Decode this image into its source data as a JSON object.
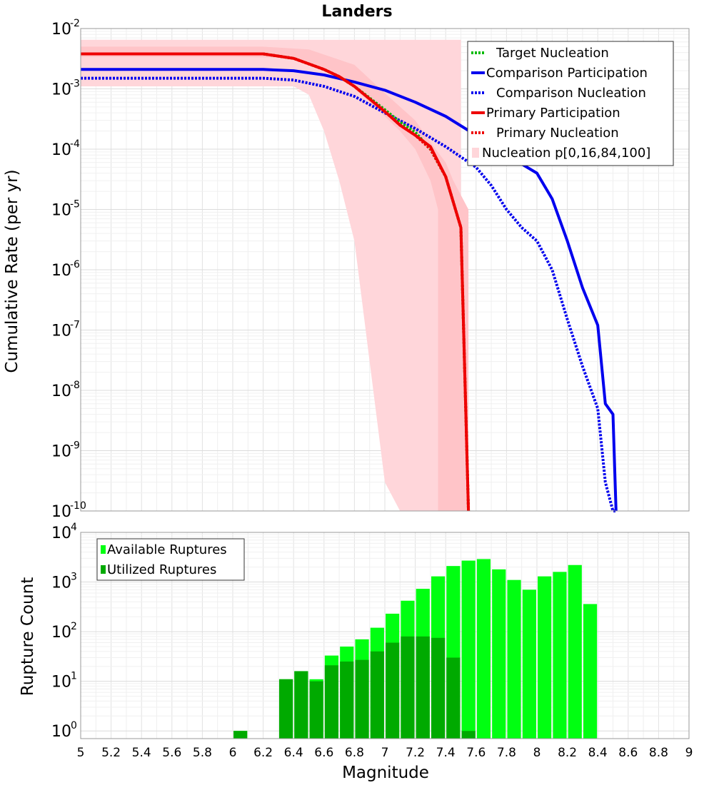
{
  "chart_data": [
    {
      "type": "line",
      "title": "Landers",
      "xlabel": "",
      "ylabel": "Cumulative Rate (per yr)",
      "xlim": [
        5,
        9
      ],
      "ylim": [
        1e-10,
        0.01
      ],
      "y_scale": "log",
      "y_ticks": [
        {
          "base": "10",
          "exp": "-10",
          "value": 1e-10
        },
        {
          "base": "10",
          "exp": "-9",
          "value": 1e-09
        },
        {
          "base": "10",
          "exp": "-8",
          "value": 1e-08
        },
        {
          "base": "10",
          "exp": "-7",
          "value": 1e-07
        },
        {
          "base": "10",
          "exp": "-6",
          "value": 1e-06
        },
        {
          "base": "10",
          "exp": "-5",
          "value": 1e-05
        },
        {
          "base": "10",
          "exp": "-4",
          "value": 0.0001
        },
        {
          "base": "10",
          "exp": "-3",
          "value": 0.001
        },
        {
          "base": "10",
          "exp": "-2",
          "value": 0.01
        }
      ],
      "grid": true,
      "legend_position": "top-right",
      "legend": [
        {
          "label": "Target Nucleation",
          "color": "#00bb00",
          "style": "dotted"
        },
        {
          "label": "Comparison Participation",
          "color": "#0000ee",
          "style": "solid"
        },
        {
          "label": "Comparison Nucleation",
          "color": "#0000ee",
          "style": "dotted"
        },
        {
          "label": "Primary Participation",
          "color": "#ee0000",
          "style": "solid"
        },
        {
          "label": "Primary Nucleation",
          "color": "#ee0000",
          "style": "dotted"
        },
        {
          "label": "Nucleation p[0,16,84,100]",
          "color": "#ffd6da",
          "style": "fill"
        }
      ],
      "bands": [
        {
          "name": "p0-p100",
          "color": "#ffd6da",
          "x": [
            5.0,
            6.2,
            6.5,
            6.8,
            7.0,
            7.1,
            7.15,
            7.5,
            7.5,
            7.4,
            7.3,
            7.2,
            7.1,
            7.0,
            6.9,
            6.8,
            6.7,
            6.6,
            6.5,
            6.4,
            6.3,
            6.0,
            5.0
          ],
          "y": [
            0.0065,
            0.0065,
            0.0065,
            0.0065,
            0.0065,
            0.0065,
            0.0065,
            0.0065,
            1e-10,
            1e-10,
            1e-10,
            1e-10,
            1e-10,
            3e-10,
            3e-08,
            3e-06,
            3e-05,
            0.0002,
            0.0008,
            0.0011,
            0.0011,
            0.0011,
            0.0011
          ]
        },
        {
          "name": "p16-p84",
          "color": "#ffc4c8",
          "x": [
            5.0,
            6.2,
            6.5,
            6.8,
            7.0,
            7.2,
            7.3,
            7.4,
            7.45,
            7.55,
            7.55,
            7.35,
            7.35,
            7.3,
            7.2,
            7.1,
            7.0,
            6.9,
            6.8,
            6.7,
            6.6,
            6.5,
            6.4,
            6.3,
            6.0,
            5.0
          ],
          "y": [
            0.005,
            0.005,
            0.0045,
            0.0025,
            0.00085,
            0.0003,
            0.00013,
            6e-05,
            3e-05,
            1e-05,
            1e-10,
            1e-10,
            1e-05,
            3e-05,
            0.0001,
            0.0002,
            0.00035,
            0.0006,
            0.001,
            0.0015,
            0.002,
            0.0025,
            0.003,
            0.0033,
            0.0034,
            0.0034
          ]
        }
      ],
      "series": [
        {
          "name": "Comparison Participation",
          "color": "#0000ee",
          "style": "solid",
          "x": [
            5.0,
            6.0,
            6.2,
            6.4,
            6.6,
            6.8,
            7.0,
            7.2,
            7.4,
            7.6,
            7.8,
            8.0,
            8.1,
            8.2,
            8.3,
            8.4,
            8.45,
            8.5,
            8.52
          ],
          "y": [
            0.0021,
            0.0021,
            0.0021,
            0.002,
            0.0017,
            0.0013,
            0.00095,
            0.0006,
            0.00035,
            0.00017,
            8e-05,
            4e-05,
            1.5e-05,
            3e-06,
            5e-07,
            1.2e-07,
            6e-09,
            4e-09,
            1e-10
          ]
        },
        {
          "name": "Comparison Nucleation",
          "color": "#0000ee",
          "style": "dotted",
          "x": [
            5.0,
            6.0,
            6.2,
            6.4,
            6.6,
            6.8,
            7.0,
            7.2,
            7.4,
            7.6,
            7.7,
            7.8,
            7.9,
            8.0,
            8.1,
            8.2,
            8.3,
            8.4,
            8.45,
            8.5,
            8.52
          ],
          "y": [
            0.0015,
            0.0015,
            0.0015,
            0.0014,
            0.0011,
            0.00075,
            0.0004,
            0.00022,
            0.00011,
            5e-05,
            2.5e-05,
            1e-05,
            5e-06,
            3e-06,
            1e-06,
            1.5e-07,
            2.5e-08,
            5e-09,
            3e-10,
            1e-10,
            1e-10
          ]
        },
        {
          "name": "Target Nucleation",
          "color": "#00bb00",
          "style": "dotted",
          "x": [
            5.0,
            6.2,
            6.4,
            6.6,
            6.7,
            6.8,
            7.0,
            7.1,
            7.2,
            7.3,
            7.4,
            7.5,
            7.55
          ],
          "y": [
            0.0038,
            0.0038,
            0.0032,
            0.0021,
            0.0016,
            0.0011,
            0.00045,
            0.00028,
            0.00019,
            0.0001,
            3.5e-05,
            5e-06,
            1e-10
          ]
        },
        {
          "name": "Primary Participation",
          "color": "#ee0000",
          "style": "solid",
          "x": [
            5.0,
            6.2,
            6.4,
            6.6,
            6.7,
            6.8,
            7.0,
            7.1,
            7.2,
            7.3,
            7.4,
            7.5,
            7.55
          ],
          "y": [
            0.0038,
            0.0038,
            0.0032,
            0.0021,
            0.0016,
            0.0011,
            0.00042,
            0.00025,
            0.00017,
            0.00011,
            3.5e-05,
            5e-06,
            1e-10
          ]
        },
        {
          "name": "Primary Nucleation",
          "color": "#ee0000",
          "style": "dotted",
          "x": [
            5.0,
            6.2,
            6.4,
            6.6,
            6.7,
            6.8,
            7.0,
            7.1,
            7.2,
            7.3,
            7.4,
            7.5,
            7.55
          ],
          "y": [
            0.0038,
            0.0038,
            0.0032,
            0.0021,
            0.0016,
            0.0011,
            0.00042,
            0.00025,
            0.00017,
            0.0001,
            3.5e-05,
            5e-06,
            1e-10
          ]
        }
      ]
    },
    {
      "type": "bar",
      "xlabel": "Magnitude",
      "ylabel": "Rupture Count",
      "xlim": [
        5,
        9
      ],
      "ylim": [
        0.7,
        10000
      ],
      "y_scale": "log",
      "grid": true,
      "x_ticks": [
        "5",
        "5.2",
        "5.4",
        "5.6",
        "5.8",
        "6",
        "6.2",
        "6.4",
        "6.6",
        "6.8",
        "7",
        "7.2",
        "7.4",
        "7.6",
        "7.8",
        "8",
        "8.2",
        "8.4",
        "8.6",
        "8.8",
        "9"
      ],
      "y_ticks": [
        {
          "base": "10",
          "exp": "0",
          "value": 1
        },
        {
          "base": "10",
          "exp": "1",
          "value": 10
        },
        {
          "base": "10",
          "exp": "2",
          "value": 100
        },
        {
          "base": "10",
          "exp": "3",
          "value": 1000
        },
        {
          "base": "10",
          "exp": "4",
          "value": 10000
        }
      ],
      "legend_position": "top-left",
      "legend": [
        {
          "label": "Available Ruptures",
          "color": "#00ff11"
        },
        {
          "label": "Utilized Ruptures",
          "color": "#00aa00"
        }
      ],
      "bar_width": 0.09,
      "series": [
        {
          "name": "Available Ruptures",
          "color": "#00ff11",
          "x": [
            6.05,
            6.35,
            6.45,
            6.55,
            6.65,
            6.75,
            6.85,
            6.95,
            7.05,
            7.15,
            7.25,
            7.35,
            7.45,
            7.55,
            7.65,
            7.75,
            7.85,
            7.95,
            8.05,
            8.15,
            8.25,
            8.35
          ],
          "values": [
            1,
            11,
            16,
            11,
            33,
            50,
            70,
            120,
            230,
            420,
            730,
            1300,
            2100,
            2700,
            2900,
            1800,
            1100,
            700,
            1300,
            1600,
            2200,
            360
          ]
        },
        {
          "name": "Utilized Ruptures",
          "color": "#00aa00",
          "x": [
            6.05,
            6.35,
            6.45,
            6.55,
            6.65,
            6.75,
            6.85,
            6.95,
            7.05,
            7.15,
            7.25,
            7.35,
            7.45,
            7.55
          ],
          "values": [
            1,
            11,
            16,
            10,
            21,
            25,
            27,
            40,
            60,
            80,
            80,
            75,
            30,
            1
          ]
        }
      ]
    }
  ]
}
